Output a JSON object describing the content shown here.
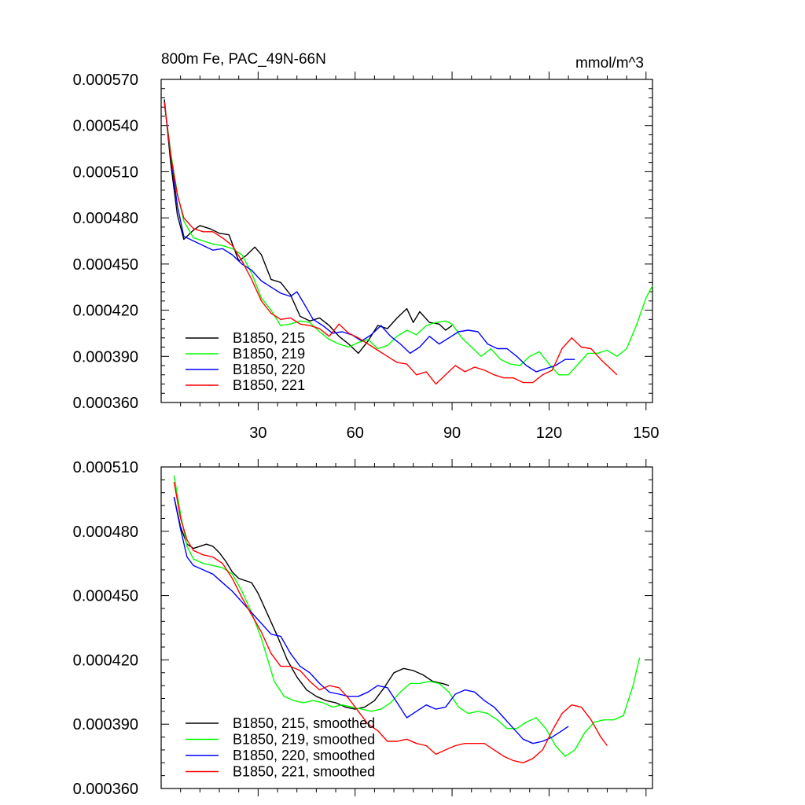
{
  "chart_data": [
    {
      "type": "line",
      "title": "800m Fe, PAC_49N-66N",
      "units": "mmol/m^3",
      "xlabel": "",
      "ylabel": "",
      "xlim": [
        0,
        152
      ],
      "ylim": [
        0.00036,
        0.00057
      ],
      "xticks": [
        30,
        60,
        90,
        120,
        150
      ],
      "xtick_labels": [
        "30",
        "60",
        "90",
        "120",
        "150"
      ],
      "yticks": [
        0.00036,
        0.00039,
        0.00042,
        0.00045,
        0.00048,
        0.00051,
        0.00054,
        0.00057
      ],
      "ytick_labels": [
        "0.000360",
        "0.000390",
        "0.000420",
        "0.000450",
        "0.000480",
        "0.000510",
        "0.000540",
        "0.000570"
      ],
      "grid": false,
      "legend_position": "bottom-left",
      "series": [
        {
          "name": "B1850, 215",
          "color": "#000000",
          "x": [
            1,
            3,
            5,
            7,
            10,
            12,
            15,
            18,
            21,
            24,
            26,
            29,
            31,
            34,
            37,
            40,
            43,
            46,
            49,
            52,
            55,
            58,
            61,
            64,
            67,
            70,
            73,
            76,
            78,
            80,
            83,
            86,
            88,
            90
          ],
          "y": [
            0.000557,
            0.000515,
            0.000482,
            0.000466,
            0.000472,
            0.000475,
            0.000473,
            0.00047,
            0.000469,
            0.000452,
            0.000455,
            0.000461,
            0.000456,
            0.00044,
            0.000438,
            0.00043,
            0.000416,
            0.000413,
            0.000415,
            0.00041,
            0.000403,
            0.000398,
            0.000392,
            0.0004,
            0.00041,
            0.000408,
            0.000415,
            0.000421,
            0.000412,
            0.000419,
            0.000412,
            0.000411,
            0.000407,
            0.00041
          ]
        },
        {
          "name": "B1850, 219",
          "color": "#00ff00",
          "x": [
            1,
            3,
            5,
            7,
            10,
            13,
            16,
            19,
            22,
            25,
            28,
            31,
            34,
            37,
            40,
            43,
            46,
            49,
            52,
            55,
            58,
            61,
            64,
            67,
            70,
            73,
            76,
            79,
            82,
            85,
            88,
            90,
            93,
            96,
            99,
            102,
            105,
            108,
            111,
            114,
            117,
            120,
            123,
            126,
            129,
            132,
            135,
            138,
            141,
            144,
            147,
            150,
            152
          ],
          "y": [
            0.000555,
            0.000522,
            0.000496,
            0.000478,
            0.000467,
            0.000465,
            0.000463,
            0.000462,
            0.00046,
            0.000456,
            0.000444,
            0.000428,
            0.00042,
            0.00041,
            0.000411,
            0.000413,
            0.000412,
            0.000406,
            0.000401,
            0.000398,
            0.000396,
            0.000399,
            0.000401,
            0.000395,
            0.000397,
            0.000403,
            0.000407,
            0.000404,
            0.00041,
            0.000412,
            0.000413,
            0.000411,
            0.000402,
            0.000396,
            0.00039,
            0.000395,
            0.000388,
            0.000385,
            0.000384,
            0.00039,
            0.000393,
            0.000385,
            0.000378,
            0.000378,
            0.000385,
            0.000392,
            0.000392,
            0.000394,
            0.00039,
            0.000395,
            0.00041,
            0.000428,
            0.000436
          ]
        },
        {
          "name": "B1850, 220",
          "color": "#0000ff",
          "x": [
            1,
            3,
            5,
            7,
            10,
            13,
            16,
            19,
            22,
            25,
            28,
            31,
            34,
            37,
            40,
            42,
            44,
            47,
            50,
            53,
            56,
            59,
            62,
            65,
            68,
            71,
            74,
            77,
            80,
            83,
            86,
            89,
            92,
            95,
            98,
            101,
            104,
            107,
            110,
            113,
            116,
            119,
            122,
            125,
            128
          ],
          "y": [
            0.000555,
            0.00052,
            0.000488,
            0.000468,
            0.000465,
            0.000462,
            0.000459,
            0.00046,
            0.000456,
            0.00045,
            0.000446,
            0.000439,
            0.000435,
            0.000431,
            0.000429,
            0.000432,
            0.000425,
            0.000414,
            0.00041,
            0.000405,
            0.000406,
            0.000404,
            0.0004,
            0.000404,
            0.00041,
            0.000403,
            0.000398,
            0.000392,
            0.000396,
            0.000403,
            0.000398,
            0.000402,
            0.000406,
            0.000407,
            0.000406,
            0.000398,
            0.000395,
            0.000395,
            0.00039,
            0.000384,
            0.00038,
            0.000382,
            0.000384,
            0.000388,
            0.000388
          ]
        },
        {
          "name": "B1850, 221",
          "color": "#ff0000",
          "x": [
            1,
            3,
            5,
            7,
            10,
            13,
            16,
            19,
            22,
            25,
            28,
            31,
            34,
            37,
            40,
            43,
            46,
            49,
            52,
            55,
            58,
            61,
            64,
            67,
            70,
            73,
            76,
            79,
            82,
            85,
            88,
            91,
            94,
            97,
            100,
            103,
            106,
            109,
            112,
            115,
            118,
            121,
            124,
            127,
            130,
            133,
            136,
            139,
            141
          ],
          "y": [
            0.000555,
            0.00052,
            0.000495,
            0.00048,
            0.000473,
            0.000471,
            0.000471,
            0.000467,
            0.000462,
            0.000452,
            0.00044,
            0.000426,
            0.000418,
            0.000414,
            0.000415,
            0.000411,
            0.00041,
            0.000408,
            0.000403,
            0.000411,
            0.000405,
            0.000402,
            0.000398,
            0.000394,
            0.00039,
            0.000386,
            0.000385,
            0.000378,
            0.00038,
            0.000372,
            0.000378,
            0.000384,
            0.00038,
            0.000383,
            0.000381,
            0.000378,
            0.000376,
            0.000376,
            0.000373,
            0.000373,
            0.000378,
            0.000381,
            0.000395,
            0.000402,
            0.000396,
            0.000395,
            0.000388,
            0.000382,
            0.000378
          ]
        }
      ]
    },
    {
      "type": "line",
      "title": "",
      "xlabel": "",
      "ylabel": "",
      "xlim": [
        0,
        152
      ],
      "ylim": [
        0.00036,
        0.00051
      ],
      "xticks": [
        30,
        60,
        90,
        120,
        150
      ],
      "xtick_labels": [],
      "yticks": [
        0.00036,
        0.00039,
        0.00042,
        0.00045,
        0.00048,
        0.00051
      ],
      "ytick_labels": [
        "0.000360",
        "0.000390",
        "0.000420",
        "0.000450",
        "0.000480",
        "0.000510"
      ],
      "grid": false,
      "legend_position": "bottom-left",
      "series": [
        {
          "name": "B1850, 215, smoothed",
          "color": "#000000",
          "x": [
            4,
            6,
            8,
            10,
            12,
            14,
            16,
            18,
            20,
            22,
            24,
            26,
            28,
            30,
            33,
            36,
            39,
            42,
            45,
            48,
            51,
            54,
            57,
            60,
            63,
            66,
            69,
            72,
            75,
            78,
            81,
            84,
            87,
            89
          ],
          "y": [
            0.000496,
            0.000482,
            0.000474,
            0.000472,
            0.000473,
            0.000474,
            0.000473,
            0.00047,
            0.000466,
            0.000461,
            0.000458,
            0.000457,
            0.000456,
            0.000451,
            0.000441,
            0.000431,
            0.00042,
            0.000412,
            0.000406,
            0.000403,
            0.000401,
            0.0004,
            0.000398,
            0.000397,
            0.000398,
            0.000401,
            0.000407,
            0.000414,
            0.000416,
            0.000415,
            0.000413,
            0.00041,
            0.000409,
            0.000408
          ]
        },
        {
          "name": "B1850, 219, smoothed",
          "color": "#00ff00",
          "x": [
            4,
            6,
            8,
            10,
            13,
            16,
            19,
            22,
            25,
            28,
            31,
            33,
            35,
            38,
            41,
            44,
            47,
            50,
            53,
            56,
            59,
            62,
            65,
            68,
            71,
            74,
            77,
            80,
            83,
            86,
            89,
            92,
            95,
            98,
            101,
            104,
            107,
            110,
            113,
            116,
            119,
            122,
            125,
            128,
            131,
            134,
            137,
            140,
            143,
            146,
            148
          ],
          "y": [
            0.000506,
            0.000488,
            0.000473,
            0.000467,
            0.000465,
            0.000464,
            0.000463,
            0.00046,
            0.000452,
            0.000442,
            0.00043,
            0.00042,
            0.00041,
            0.000403,
            0.000401,
            0.0004,
            0.000401,
            0.0004,
            0.000398,
            0.000399,
            0.000398,
            0.000397,
            0.000396,
            0.000397,
            0.0004,
            0.000405,
            0.000409,
            0.000409,
            0.00041,
            0.000409,
            0.000405,
            0.000398,
            0.000395,
            0.000396,
            0.000395,
            0.000392,
            0.000388,
            0.000388,
            0.000391,
            0.000393,
            0.000388,
            0.00038,
            0.000375,
            0.000378,
            0.000386,
            0.000391,
            0.000392,
            0.000392,
            0.000394,
            0.000408,
            0.000421
          ]
        },
        {
          "name": "B1850, 220, smoothed",
          "color": "#0000ff",
          "x": [
            4,
            6,
            8,
            10,
            13,
            16,
            19,
            22,
            25,
            28,
            31,
            34,
            37,
            40,
            43,
            46,
            49,
            52,
            55,
            58,
            61,
            64,
            67,
            70,
            73,
            76,
            79,
            82,
            85,
            88,
            91,
            94,
            97,
            100,
            103,
            106,
            109,
            112,
            115,
            118,
            121,
            124,
            126
          ],
          "y": [
            0.000496,
            0.000481,
            0.000468,
            0.000464,
            0.000462,
            0.00046,
            0.000456,
            0.000452,
            0.000447,
            0.000442,
            0.000437,
            0.000432,
            0.000431,
            0.000423,
            0.000417,
            0.000414,
            0.000409,
            0.000405,
            0.000404,
            0.000403,
            0.000403,
            0.000405,
            0.000408,
            0.000407,
            0.0004,
            0.000393,
            0.000396,
            0.000399,
            0.000397,
            0.000398,
            0.000404,
            0.000406,
            0.000405,
            0.000401,
            0.000398,
            0.000393,
            0.000388,
            0.000383,
            0.000381,
            0.000382,
            0.000384,
            0.000387,
            0.000389
          ]
        },
        {
          "name": "B1850, 221, smoothed",
          "color": "#ff0000",
          "x": [
            4,
            6,
            8,
            10,
            13,
            16,
            19,
            22,
            25,
            28,
            31,
            34,
            37,
            40,
            43,
            46,
            49,
            52,
            55,
            58,
            61,
            64,
            67,
            70,
            73,
            76,
            79,
            82,
            85,
            88,
            91,
            94,
            97,
            100,
            103,
            106,
            109,
            112,
            115,
            118,
            121,
            124,
            127,
            130,
            133,
            136,
            138
          ],
          "y": [
            0.000503,
            0.000486,
            0.000476,
            0.000471,
            0.000469,
            0.000468,
            0.000465,
            0.000458,
            0.000449,
            0.000441,
            0.000433,
            0.000423,
            0.000417,
            0.000417,
            0.000415,
            0.00041,
            0.000406,
            0.000408,
            0.000407,
            0.000402,
            0.000396,
            0.00039,
            0.000387,
            0.000382,
            0.000382,
            0.000383,
            0.000381,
            0.00038,
            0.000376,
            0.000378,
            0.00038,
            0.000381,
            0.000381,
            0.000381,
            0.000378,
            0.000375,
            0.000373,
            0.000372,
            0.000374,
            0.000378,
            0.000387,
            0.000395,
            0.000399,
            0.000398,
            0.000392,
            0.000384,
            0.00038
          ]
        }
      ]
    }
  ]
}
